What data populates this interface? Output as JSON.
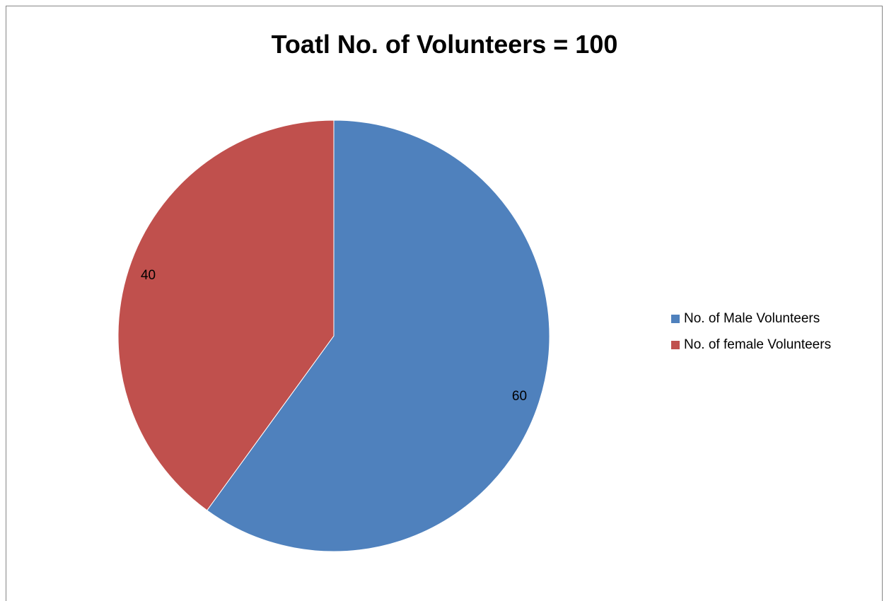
{
  "chart_data": {
    "type": "pie",
    "title": "Toatl No. of Volunteers = 100",
    "categories": [
      "No. of Male Volunteers",
      "No. of female Volunteers"
    ],
    "values": [
      60,
      40
    ],
    "data_labels": [
      "60",
      "40"
    ],
    "colors": [
      "#4f81bd",
      "#c0504d"
    ],
    "start_angle": "12 o'clock",
    "direction": "clockwise",
    "legend_position": "right"
  }
}
